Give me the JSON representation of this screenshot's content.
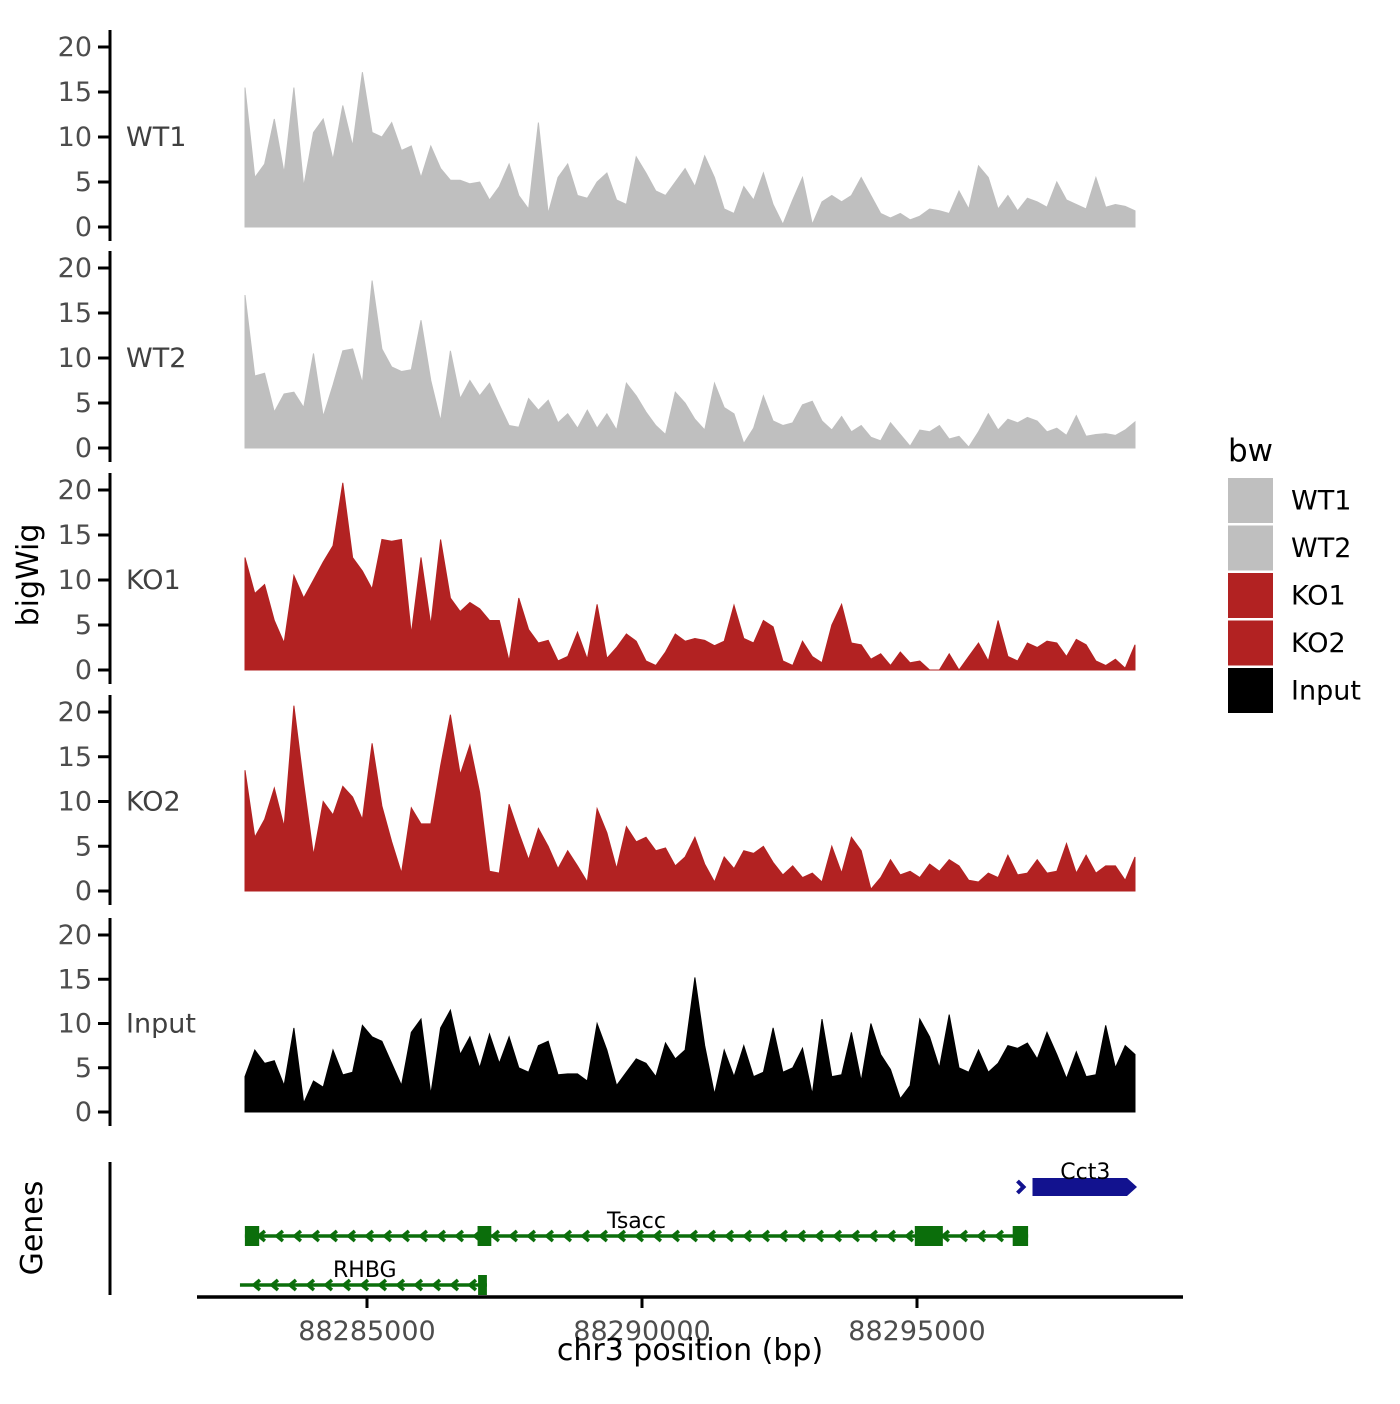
{
  "chart_data": {
    "type": "area",
    "title": "",
    "xlabel": "chr3 position (bp)",
    "ylabel": "bigWig",
    "genes_panel_label": "Genes",
    "grid": false,
    "x_axis": {
      "tick_values_bp": [
        88285000,
        88290000,
        88295000
      ],
      "tick_labels": [
        "88285000",
        "88290000",
        "88295000"
      ],
      "axis_range_bp": [
        88281900,
        88299800
      ],
      "data_range_bp": [
        88282780,
        88298960
      ]
    },
    "y_axis": {
      "tick_values": [
        0,
        5,
        10,
        15,
        20
      ],
      "tick_labels": [
        "0",
        "5",
        "10",
        "15",
        "20"
      ],
      "ylim": [
        0,
        21.5
      ]
    },
    "legend": {
      "title": "bw",
      "position": "right",
      "entries": [
        {
          "label": "WT1",
          "color": "#bfbfbf"
        },
        {
          "label": "WT2",
          "color": "#bfbfbf"
        },
        {
          "label": "KO1",
          "color": "#b22222"
        },
        {
          "label": "KO2",
          "color": "#b22222"
        },
        {
          "label": "Input",
          "color": "#000000"
        }
      ]
    },
    "tracks": [
      {
        "name": "WT1",
        "color": "#bfbfbf",
        "values": [
          15.5,
          5.5,
          7,
          12,
          6,
          15.5,
          4.5,
          10.5,
          12,
          7.5,
          13.5,
          9,
          17.2,
          10.5,
          10,
          11.6,
          8.5,
          9,
          5.5,
          9,
          6.5,
          5.2,
          5.2,
          4.8,
          5,
          3,
          4.5,
          7,
          3.5,
          2,
          11.6,
          1.5,
          5.5,
          7,
          3.5,
          3.2,
          5,
          6,
          3,
          2.5,
          7.8,
          6,
          4,
          3.5,
          5,
          6.5,
          4.5,
          7.9,
          5.5,
          2,
          1.5,
          4.5,
          3,
          6,
          2.5,
          0.3,
          3,
          5.5,
          0.3,
          2.8,
          3.5,
          2.8,
          3.5,
          5.5,
          3.5,
          1.5,
          1,
          1.5,
          0.8,
          1.2,
          2,
          1.8,
          1.5,
          4,
          2,
          6.8,
          5.5,
          2,
          3.5,
          1.8,
          3.2,
          2.8,
          2.2,
          5,
          3,
          2.5,
          2,
          5.5,
          2.2,
          2.5,
          2.3,
          1.8
        ]
      },
      {
        "name": "WT2",
        "color": "#bfbfbf",
        "values": [
          17,
          8,
          8.3,
          4,
          6,
          6.2,
          4.5,
          10.5,
          3.5,
          7,
          10.8,
          11,
          7.2,
          18.6,
          11,
          9,
          8.5,
          8.7,
          14.2,
          7.5,
          3,
          10.8,
          5.5,
          7.5,
          5.8,
          7.2,
          4.8,
          2.5,
          2.3,
          5.5,
          4.2,
          5.3,
          2.8,
          3.8,
          2.2,
          4.2,
          2.2,
          3.8,
          2,
          7.2,
          5.8,
          4,
          2.5,
          1.5,
          6.2,
          5,
          3.2,
          2,
          7.2,
          4.5,
          3.8,
          0.5,
          2.2,
          5.8,
          3,
          2.5,
          2.8,
          4.8,
          5.2,
          3,
          2,
          3.5,
          1.8,
          2.5,
          1.2,
          0.8,
          2.8,
          1.5,
          0.2,
          2,
          1.8,
          2.5,
          1,
          1.3,
          0.1,
          1.8,
          3.8,
          2,
          3.2,
          2.8,
          3.4,
          3,
          1.8,
          2.2,
          1.4,
          3.6,
          1.3,
          1.5,
          1.6,
          1.4,
          2,
          2.9
        ]
      },
      {
        "name": "KO1",
        "color": "#b22222",
        "values": [
          12.5,
          8.5,
          9.5,
          5.5,
          3,
          10.5,
          8,
          10,
          12,
          13.8,
          20.8,
          12.5,
          11,
          9,
          14.5,
          14.3,
          14.5,
          4,
          12.5,
          5,
          14.5,
          8,
          6.5,
          7.5,
          6.8,
          5.5,
          5.5,
          1,
          8,
          4.5,
          3,
          3.3,
          1,
          1.5,
          4.2,
          1.2,
          7.3,
          1.3,
          2.5,
          4,
          3.2,
          1,
          0.5,
          2,
          4,
          3.2,
          3.5,
          3.3,
          2.7,
          3.2,
          7.2,
          3.5,
          3,
          5.5,
          4.8,
          1,
          0.5,
          3.2,
          1.5,
          0.8,
          5,
          7.3,
          3,
          2.8,
          1.2,
          1.8,
          0.5,
          2,
          0.8,
          1,
          0,
          0,
          1.8,
          0,
          1.5,
          3,
          1,
          5.5,
          1.5,
          1,
          3,
          2.5,
          3.2,
          3,
          1.5,
          3.4,
          2.8,
          1,
          0.5,
          1.2,
          0.2,
          2.8
        ]
      },
      {
        "name": "KO2",
        "color": "#b22222",
        "values": [
          13.5,
          6,
          8,
          11.5,
          7.2,
          20.7,
          12,
          4,
          10,
          8.5,
          11.7,
          10.5,
          8,
          16.5,
          9.5,
          5.5,
          2,
          9.3,
          7.5,
          7.5,
          14,
          19.7,
          13,
          16.3,
          11,
          2.2,
          2,
          9.7,
          6.5,
          3.5,
          7,
          5,
          2.5,
          4.5,
          2.8,
          1,
          9.2,
          6.5,
          2.5,
          7.2,
          5.5,
          6,
          4.5,
          4.8,
          2.8,
          3.8,
          6,
          3,
          1,
          3.8,
          2.5,
          4.5,
          4.2,
          5,
          3.2,
          1.8,
          2.8,
          1.5,
          2,
          1,
          5,
          2,
          6,
          4.5,
          0.2,
          1.5,
          3.5,
          1.8,
          2.2,
          1.5,
          3,
          2.2,
          3.5,
          2.8,
          1.2,
          1,
          2,
          1.5,
          4,
          1.8,
          2,
          3.5,
          2,
          2.2,
          5.3,
          2,
          4,
          2,
          2.8,
          2.8,
          1.2,
          3.8
        ]
      },
      {
        "name": "Input",
        "color": "#000000",
        "values": [
          4,
          7,
          5.5,
          5.8,
          3,
          9.5,
          1,
          3.5,
          2.8,
          7,
          4.2,
          4.5,
          9.8,
          8.5,
          8,
          5.5,
          3,
          9,
          10.5,
          2,
          9.5,
          11.5,
          6.5,
          8.5,
          5,
          8.8,
          5.5,
          8.5,
          5,
          4.5,
          7.5,
          8,
          4.2,
          4.3,
          4.3,
          3.5,
          10,
          7,
          3,
          4.5,
          6,
          5.5,
          4,
          7.8,
          6,
          7,
          15.2,
          7.5,
          2,
          7,
          4,
          7.5,
          4,
          4.5,
          9.5,
          4.5,
          5,
          7.2,
          2,
          10.5,
          4,
          4.2,
          9,
          3.5,
          10,
          6.5,
          4.8,
          1.5,
          3,
          10.5,
          8.5,
          5,
          11,
          5,
          4.5,
          7,
          4.5,
          5.5,
          7.5,
          7.2,
          7.8,
          6,
          9,
          6.5,
          3.8,
          6.8,
          4,
          4.2,
          9.8,
          5,
          7.5,
          6.5
        ]
      }
    ],
    "genes": [
      {
        "name": "Cct3",
        "strand": "+",
        "color": "#12128f",
        "row": 0,
        "start_bp": 88297100,
        "end_bp": 88299000,
        "style": "solid-box",
        "label_bp": 88298060
      },
      {
        "name": "Tsacc",
        "strand": "-",
        "color": "#0b6e0b",
        "row": 1,
        "start_bp": 88282780,
        "end_bp": 88297020,
        "style": "exon-intron",
        "exons_bp": [
          [
            88282780,
            88283040
          ],
          [
            88287010,
            88287260
          ],
          [
            88294960,
            88295470
          ],
          [
            88296740,
            88297020
          ]
        ],
        "label_bp": 88289900
      },
      {
        "name": "RHBG",
        "strand": "-",
        "color": "#0b6e0b",
        "row": 2,
        "start_bp": 88282690,
        "end_bp": 88287180,
        "style": "exon-intron",
        "exons_bp": [
          [
            88287020,
            88287180
          ]
        ],
        "label_bp": 88284960
      }
    ]
  },
  "colors": {
    "background": "#ffffff",
    "axis_line": "#000000",
    "tick_text": "#4d4d4d",
    "track_label_text": "#404040",
    "wt_fill": "#bfbfbf",
    "ko_fill": "#b22222",
    "input_fill": "#000000",
    "gene_green": "#0b6e0b",
    "gene_navy": "#12128f"
  }
}
